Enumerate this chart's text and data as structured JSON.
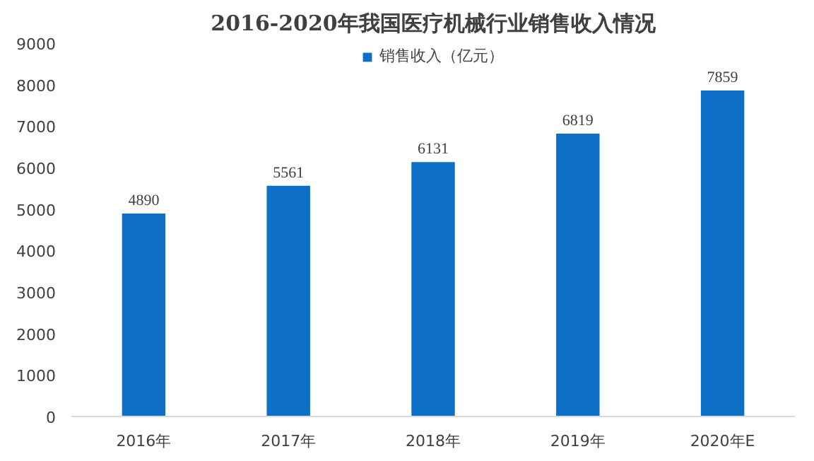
{
  "chart_data": {
    "type": "bar",
    "title": "2016-2020年我国医疗机械行业销售收入情况",
    "categories": [
      "2016年",
      "2017年",
      "2018年",
      "2019年",
      "2020年E"
    ],
    "series": [
      {
        "name": "销售收入（亿元）",
        "color": "#0e6fc6",
        "values": [
          4890,
          5561,
          6131,
          6819,
          7859
        ]
      }
    ],
    "ylim": [
      0,
      9000
    ],
    "yticks": [
      0,
      1000,
      2000,
      3000,
      4000,
      5000,
      6000,
      7000,
      8000,
      9000
    ],
    "data_labels": true,
    "grid": false,
    "legend": "top"
  }
}
